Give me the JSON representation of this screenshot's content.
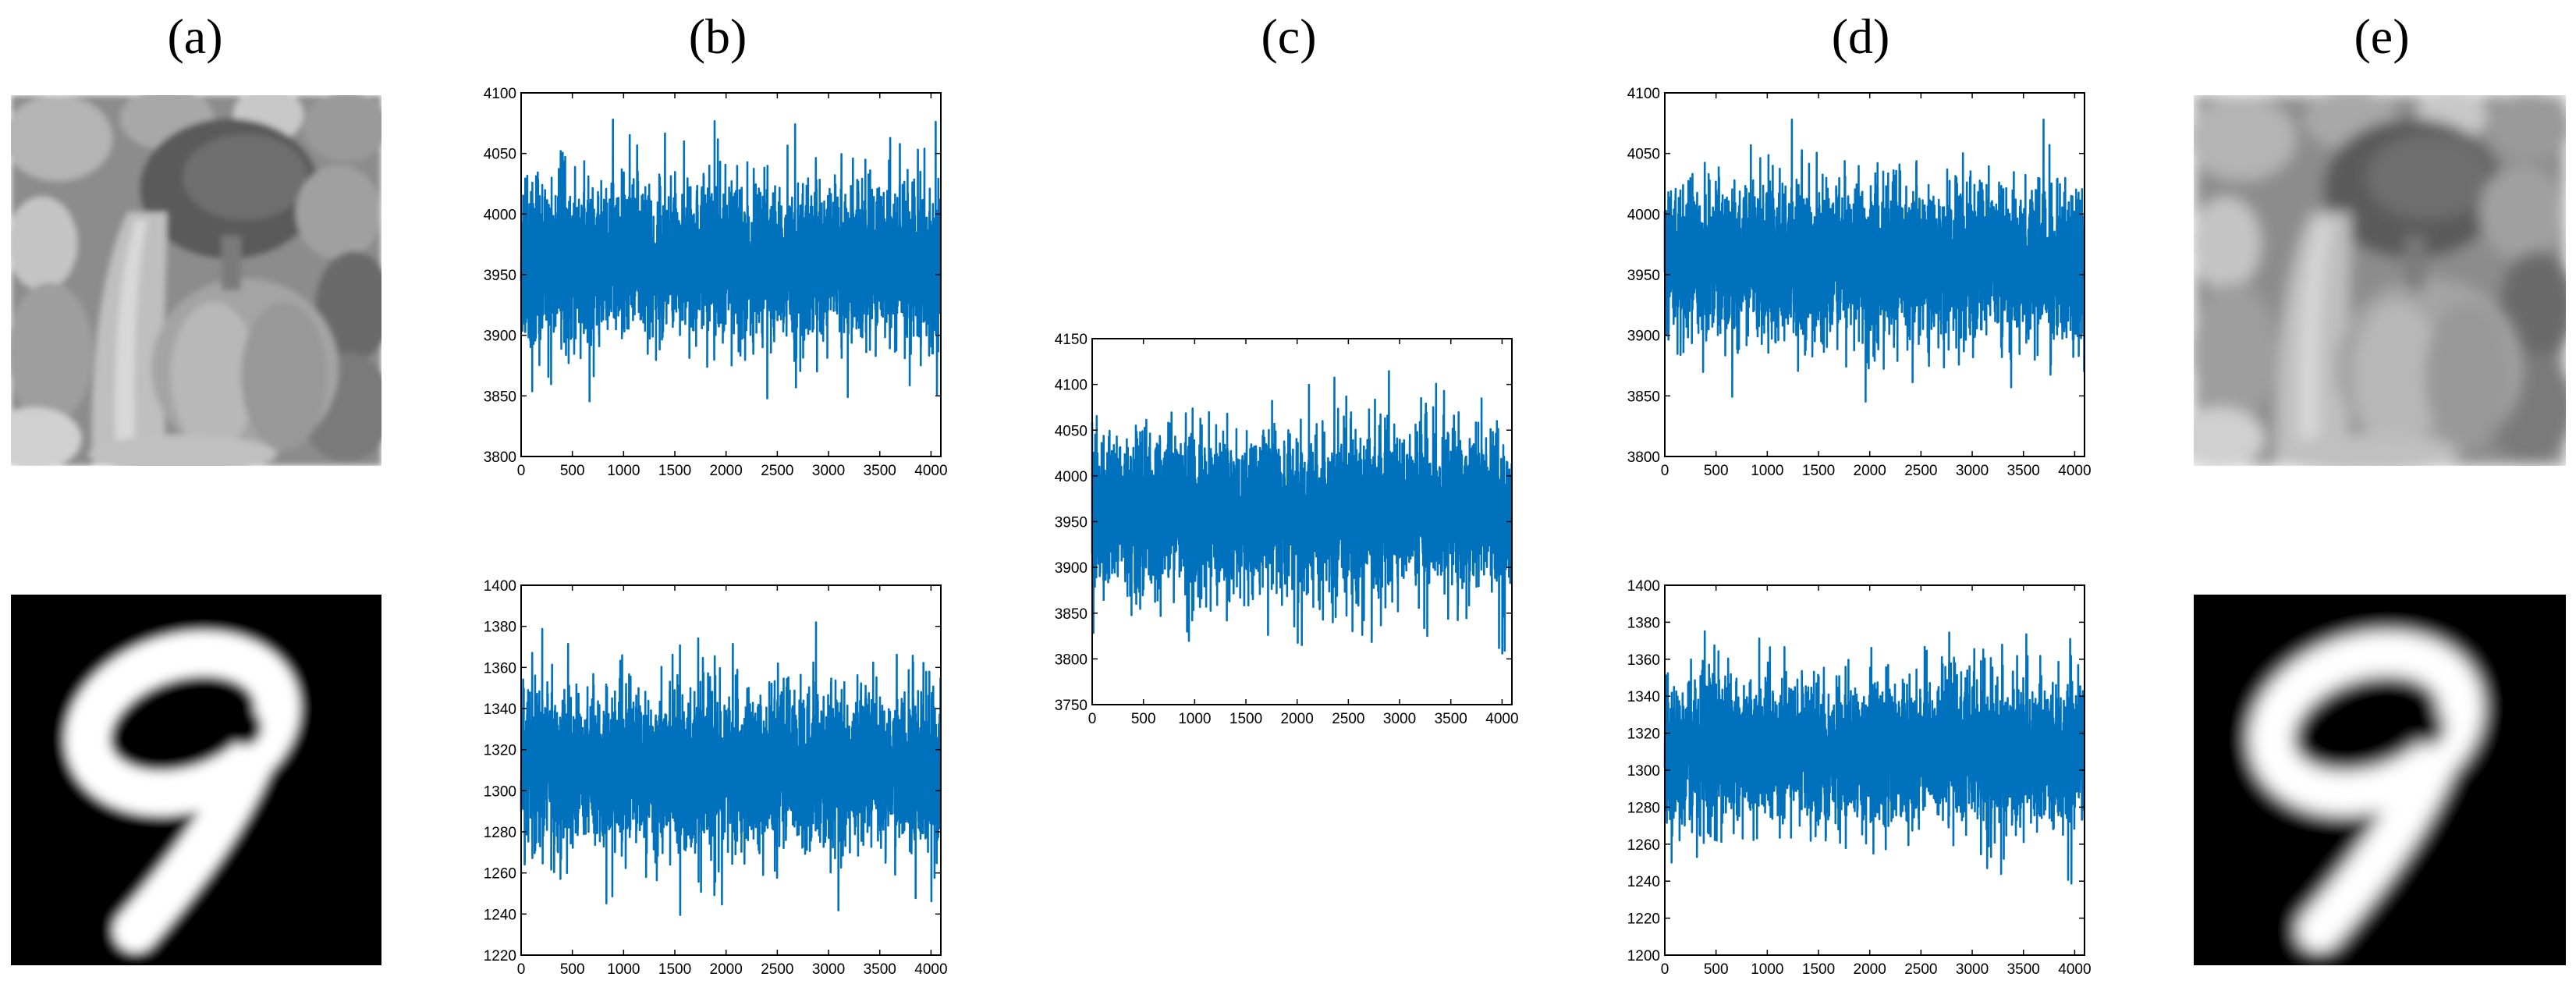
{
  "panel_labels": [
    "(a)",
    "(b)",
    "(c)",
    "(d)",
    "(e)"
  ],
  "images": [
    {
      "panel": "(a)",
      "row": "top",
      "content": "grayscale peppers photo",
      "style": "original"
    },
    {
      "panel": "(a)",
      "row": "bottom",
      "content": "handwritten digit 9",
      "style": "original"
    },
    {
      "panel": "(e)",
      "row": "top",
      "content": "grayscale peppers photo",
      "style": "reconstructed"
    },
    {
      "panel": "(e)",
      "row": "bottom",
      "content": "handwritten digit 9",
      "style": "reconstructed"
    }
  ],
  "chart_data": [
    {
      "id": "b-top",
      "panel": "(b)",
      "type": "line",
      "xlim": [
        0,
        4096
      ],
      "ylim": [
        3800,
        4100
      ],
      "xticks": [
        0,
        500,
        1000,
        1500,
        2000,
        2500,
        3000,
        3500,
        4000
      ],
      "yticks": [
        3800,
        3850,
        3900,
        3950,
        4000,
        4050,
        4100
      ],
      "series": [
        {
          "n_points": 4096,
          "mean": 3960,
          "std": 30,
          "min": 3842,
          "max": 4078,
          "color": "#0072bd",
          "seed": 11
        }
      ]
    },
    {
      "id": "b-bottom",
      "panel": "(b)",
      "type": "line",
      "xlim": [
        0,
        4096
      ],
      "ylim": [
        1220,
        1400
      ],
      "xticks": [
        0,
        500,
        1000,
        1500,
        2000,
        2500,
        3000,
        3500,
        4000
      ],
      "yticks": [
        1220,
        1240,
        1260,
        1280,
        1300,
        1320,
        1340,
        1360,
        1380,
        1400
      ],
      "series": [
        {
          "n_points": 4096,
          "mean": 1310,
          "std": 18,
          "min": 1232,
          "max": 1390,
          "color": "#0072bd",
          "seed": 23
        }
      ]
    },
    {
      "id": "c",
      "panel": "(c)",
      "type": "line",
      "xlim": [
        0,
        4096
      ],
      "ylim": [
        3750,
        4150
      ],
      "xticks": [
        0,
        500,
        1000,
        1500,
        2000,
        2500,
        3000,
        3500,
        4000
      ],
      "yticks": [
        3750,
        3800,
        3850,
        3900,
        3950,
        4000,
        4050,
        4100,
        4150
      ],
      "series": [
        {
          "n_points": 4096,
          "mean": 3960,
          "std": 40,
          "min": 3778,
          "max": 4138,
          "color": "#0072bd",
          "seed": 37
        }
      ]
    },
    {
      "id": "d-top",
      "panel": "(d)",
      "type": "line",
      "xlim": [
        0,
        4096
      ],
      "ylim": [
        3800,
        4100
      ],
      "xticks": [
        0,
        500,
        1000,
        1500,
        2000,
        2500,
        3000,
        3500,
        4000
      ],
      "yticks": [
        3800,
        3850,
        3900,
        3950,
        4000,
        4050,
        4100
      ],
      "series": [
        {
          "n_points": 4096,
          "mean": 3960,
          "std": 30,
          "min": 3842,
          "max": 4078,
          "color": "#0072bd",
          "seed": 53
        }
      ]
    },
    {
      "id": "d-bottom",
      "panel": "(d)",
      "type": "line",
      "xlim": [
        0,
        4096
      ],
      "ylim": [
        1200,
        1400
      ],
      "xticks": [
        0,
        500,
        1000,
        1500,
        2000,
        2500,
        3000,
        3500,
        4000
      ],
      "yticks": [
        1200,
        1220,
        1240,
        1260,
        1280,
        1300,
        1320,
        1340,
        1360,
        1380,
        1400
      ],
      "series": [
        {
          "n_points": 4096,
          "mean": 1310,
          "std": 18,
          "min": 1226,
          "max": 1392,
          "color": "#0072bd",
          "seed": 71
        }
      ]
    }
  ]
}
